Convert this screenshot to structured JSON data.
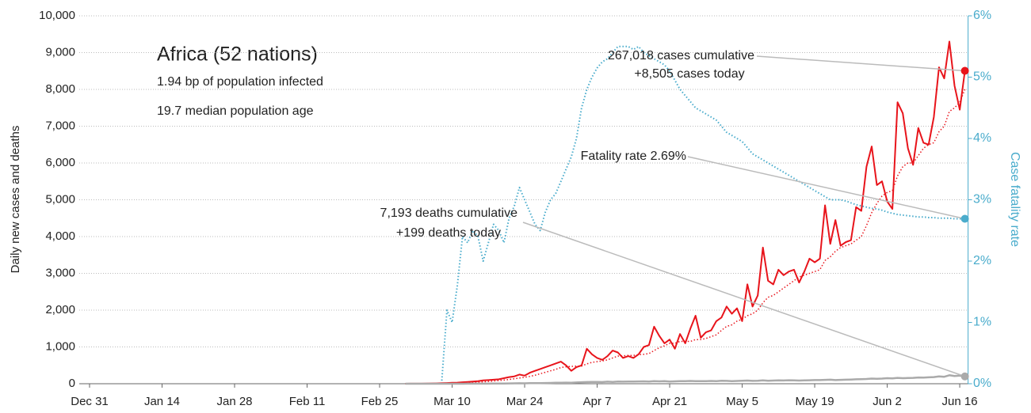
{
  "chart_data": {
    "type": "line",
    "title": "Africa (52 nations)",
    "subtitle": [
      "1.94 bp of population infected",
      "19.7 median population age"
    ],
    "ylabel": "Daily new cases and deaths",
    "y2label": "Case fatality rate",
    "xlim": [
      "Dec 31",
      "Jun 17"
    ],
    "xticks": [
      "Dec 31",
      "Jan 14",
      "Jan 28",
      "Feb 11",
      "Feb 25",
      "Mar 10",
      "Mar 24",
      "Apr 7",
      "Apr 21",
      "May 5",
      "May 19",
      "Jun 2",
      "Jun 16"
    ],
    "ylim": [
      0,
      10000
    ],
    "yticks": [
      0,
      {
        "value": 1000,
        "label": "1,000"
      },
      {
        "value": 2000,
        "label": "2,000"
      },
      {
        "value": 3000,
        "label": "3,000"
      },
      {
        "value": 4000,
        "label": "4,000"
      },
      {
        "value": 5000,
        "label": "5,000"
      },
      {
        "value": 6000,
        "label": "6,000"
      },
      {
        "value": 7000,
        "label": "7,000"
      },
      {
        "value": 8000,
        "label": "8,000"
      },
      {
        "value": 9000,
        "label": "9,000"
      },
      {
        "value": 10000,
        "label": "10,000"
      }
    ],
    "y2lim": [
      0,
      6
    ],
    "y2ticks": [
      {
        "value": 0,
        "label": "0%"
      },
      {
        "value": 1,
        "label": "1%"
      },
      {
        "value": 2,
        "label": "2%"
      },
      {
        "value": 3,
        "label": "3%"
      },
      {
        "value": 4,
        "label": "4%"
      },
      {
        "value": 5,
        "label": "5%"
      },
      {
        "value": 6,
        "label": "6%"
      }
    ],
    "grid": true,
    "x": [
      "Mar 1",
      "Mar 2",
      "Mar 3",
      "Mar 4",
      "Mar 5",
      "Mar 6",
      "Mar 7",
      "Mar 8",
      "Mar 9",
      "Mar 10",
      "Mar 11",
      "Mar 12",
      "Mar 13",
      "Mar 14",
      "Mar 15",
      "Mar 16",
      "Mar 17",
      "Mar 18",
      "Mar 19",
      "Mar 20",
      "Mar 21",
      "Mar 22",
      "Mar 23",
      "Mar 24",
      "Mar 25",
      "Mar 26",
      "Mar 27",
      "Mar 28",
      "Mar 29",
      "Mar 30",
      "Mar 31",
      "Apr 1",
      "Apr 2",
      "Apr 3",
      "Apr 4",
      "Apr 5",
      "Apr 6",
      "Apr 7",
      "Apr 8",
      "Apr 9",
      "Apr 10",
      "Apr 11",
      "Apr 12",
      "Apr 13",
      "Apr 14",
      "Apr 15",
      "Apr 16",
      "Apr 17",
      "Apr 18",
      "Apr 19",
      "Apr 20",
      "Apr 21",
      "Apr 22",
      "Apr 23",
      "Apr 24",
      "Apr 25",
      "Apr 26",
      "Apr 27",
      "Apr 28",
      "Apr 29",
      "Apr 30",
      "May 1",
      "May 2",
      "May 3",
      "May 4",
      "May 5",
      "May 6",
      "May 7",
      "May 8",
      "May 9",
      "May 10",
      "May 11",
      "May 12",
      "May 13",
      "May 14",
      "May 15",
      "May 16",
      "May 17",
      "May 18",
      "May 19",
      "May 20",
      "May 21",
      "May 22",
      "May 23",
      "May 24",
      "May 25",
      "May 26",
      "May 27",
      "May 28",
      "May 29",
      "May 30",
      "May 31",
      "Jun 1",
      "Jun 2",
      "Jun 3",
      "Jun 4",
      "Jun 5",
      "Jun 6",
      "Jun 7",
      "Jun 8",
      "Jun 9",
      "Jun 10",
      "Jun 11",
      "Jun 12",
      "Jun 13",
      "Jun 14",
      "Jun 15",
      "Jun 16",
      "Jun 17"
    ],
    "series": [
      {
        "color": "#e8141b",
        "dash": "solid",
        "width": 2,
        "endpoint": true,
        "values": [
          1,
          2,
          3,
          3,
          5,
          8,
          10,
          15,
          20,
          25,
          30,
          40,
          50,
          60,
          70,
          90,
          100,
          110,
          120,
          150,
          180,
          200,
          250,
          220,
          300,
          350,
          400,
          450,
          500,
          550,
          600,
          500,
          350,
          450,
          500,
          950,
          800,
          700,
          650,
          750,
          900,
          850,
          700,
          750,
          700,
          800,
          1000,
          1050,
          1550,
          1300,
          1100,
          1200,
          950,
          1350,
          1100,
          1500,
          1850,
          1250,
          1400,
          1450,
          1700,
          1800,
          2100,
          1900,
          2050,
          1700,
          2700,
          2100,
          2400,
          3700,
          2800,
          2700,
          3100,
          2950,
          3050,
          3100,
          2750,
          3050,
          3400,
          3300,
          3400,
          4850,
          3800,
          4450,
          3750,
          3850,
          3900,
          4800,
          4700,
          5900,
          6450,
          5400,
          5500,
          4950,
          4750,
          7650,
          7350,
          6400,
          5950,
          6950,
          6550,
          6500,
          7250,
          8600,
          8300,
          9300,
          8100,
          7450,
          8505
        ]
      },
      {
        "color": "#e8141b",
        "dash": "dotted",
        "width": 1.5,
        "endpoint": false,
        "values": [
          0,
          1,
          1,
          2,
          2,
          3,
          5,
          7,
          9,
          12,
          15,
          20,
          26,
          34,
          42,
          52,
          63,
          74,
          86,
          100,
          117,
          135,
          155,
          175,
          200,
          230,
          270,
          310,
          350,
          390,
          440,
          460,
          470,
          480,
          480,
          540,
          580,
          600,
          620,
          650,
          700,
          750,
          760,
          770,
          770,
          790,
          800,
          820,
          900,
          980,
          1030,
          1100,
          1100,
          1150,
          1150,
          1150,
          1200,
          1200,
          1230,
          1280,
          1330,
          1450,
          1560,
          1600,
          1700,
          1750,
          1850,
          1900,
          2000,
          2200,
          2350,
          2400,
          2500,
          2600,
          2700,
          2800,
          2900,
          2950,
          3000,
          3050,
          3100,
          3350,
          3450,
          3600,
          3700,
          3750,
          3800,
          3900,
          4000,
          4300,
          4650,
          4900,
          5100,
          5200,
          5250,
          5650,
          5900,
          6000,
          6000,
          6200,
          6400,
          6500,
          6550,
          6850,
          7000,
          7400,
          7500,
          7650,
          8000
        ]
      },
      {
        "color": "#aaaaaa",
        "dash": "solid",
        "width": 2.5,
        "endpoint": true,
        "values": [
          0,
          0,
          0,
          0,
          0,
          0,
          0,
          0,
          0,
          1,
          1,
          1,
          2,
          2,
          2,
          3,
          3,
          4,
          5,
          6,
          8,
          10,
          12,
          10,
          14,
          15,
          18,
          20,
          22,
          25,
          28,
          30,
          25,
          35,
          40,
          45,
          50,
          48,
          45,
          55,
          50,
          60,
          55,
          60,
          58,
          62,
          65,
          60,
          70,
          65,
          70,
          60,
          65,
          70,
          72,
          75,
          70,
          68,
          72,
          75,
          70,
          80,
          78,
          70,
          75,
          80,
          85,
          78,
          82,
          90,
          80,
          85,
          90,
          88,
          95,
          92,
          85,
          90,
          95,
          100,
          98,
          105,
          110,
          100,
          105,
          110,
          115,
          120,
          125,
          130,
          140,
          135,
          140,
          150,
          145,
          160,
          150,
          155,
          160,
          170,
          165,
          175,
          180,
          200,
          190,
          230,
          210,
          220,
          199
        ]
      },
      {
        "color": "#4aaccc",
        "dash": "dotted",
        "width": 2,
        "endpoint": true,
        "axis": "y2",
        "values": [
          null,
          null,
          null,
          null,
          null,
          null,
          null,
          0.05,
          1.2,
          1.0,
          1.6,
          2.4,
          2.3,
          2.5,
          2.4,
          2.0,
          2.3,
          2.6,
          2.5,
          2.3,
          2.7,
          2.9,
          3.2,
          3.0,
          2.8,
          2.6,
          2.5,
          2.8,
          3.0,
          3.1,
          3.3,
          3.5,
          3.7,
          4.0,
          4.5,
          4.8,
          5.0,
          5.15,
          5.25,
          5.3,
          5.4,
          5.5,
          5.5,
          5.5,
          5.45,
          5.5,
          5.4,
          5.35,
          5.3,
          5.25,
          5.2,
          5.1,
          4.95,
          4.8,
          4.7,
          4.6,
          4.5,
          4.45,
          4.4,
          4.35,
          4.3,
          4.2,
          4.1,
          4.05,
          4.0,
          3.95,
          3.85,
          3.75,
          3.7,
          3.65,
          3.6,
          3.55,
          3.5,
          3.45,
          3.4,
          3.35,
          3.3,
          3.25,
          3.2,
          3.15,
          3.1,
          3.05,
          3.0,
          3.0,
          3.0,
          2.98,
          2.95,
          2.92,
          2.9,
          2.88,
          2.86,
          2.85,
          2.83,
          2.8,
          2.78,
          2.76,
          2.75,
          2.74,
          2.73,
          2.72,
          2.72,
          2.71,
          2.71,
          2.7,
          2.7,
          2.7,
          2.69,
          2.69,
          2.69
        ]
      }
    ],
    "annotations": [
      {
        "lines": [
          "267,018 cases cumulative",
          "+8,505 cases today"
        ],
        "series": 0
      },
      {
        "lines": [
          "Fatality rate 2.69%"
        ],
        "series": 3
      },
      {
        "lines": [
          "7,193 deaths cumulative",
          "+199 deaths today"
        ],
        "series": 2
      }
    ]
  }
}
